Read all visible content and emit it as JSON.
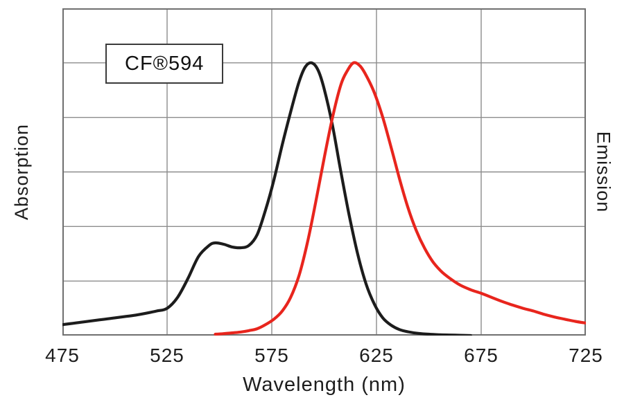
{
  "chart_data": {
    "type": "line",
    "title": "CF®594",
    "xlabel": "Wavelength (nm)",
    "ylabel_left": "Absorption",
    "ylabel_right": "Emission",
    "xlim": [
      475,
      725
    ],
    "ylim": [
      0,
      1.2
    ],
    "x_ticks": [
      475,
      525,
      575,
      625,
      675,
      725
    ],
    "grid": true,
    "h_grid_step": 0.2,
    "legend_position": "none",
    "colors": {
      "grid": "#8c8c8c",
      "border": "#6f6f6f",
      "text": "#1d1d1d",
      "absorption": "#1c1c1c",
      "emission": "#e8251d"
    },
    "series": [
      {
        "name": "Absorption",
        "color": "#1c1c1c",
        "x": [
          475,
          480,
          485,
          490,
          495,
          500,
          505,
          510,
          515,
          520,
          525,
          530,
          535,
          540,
          545,
          548,
          552,
          556,
          560,
          564,
          568,
          572,
          576,
          580,
          584,
          588,
          591,
          594,
          597,
          600,
          604,
          608,
          612,
          616,
          620,
          624,
          628,
          632,
          636,
          640,
          645,
          650,
          655,
          660,
          665,
          670
        ],
        "y": [
          0.04,
          0.045,
          0.05,
          0.055,
          0.06,
          0.065,
          0.07,
          0.075,
          0.082,
          0.09,
          0.1,
          0.14,
          0.21,
          0.29,
          0.33,
          0.34,
          0.335,
          0.325,
          0.322,
          0.33,
          0.37,
          0.46,
          0.57,
          0.7,
          0.82,
          0.93,
          0.985,
          1.0,
          0.975,
          0.905,
          0.77,
          0.6,
          0.44,
          0.3,
          0.19,
          0.115,
          0.065,
          0.038,
          0.022,
          0.014,
          0.008,
          0.005,
          0.003,
          0.002,
          0.001,
          0.0
        ]
      },
      {
        "name": "Emission",
        "color": "#e8251d",
        "x": [
          548,
          552,
          556,
          560,
          564,
          568,
          572,
          576,
          580,
          584,
          588,
          592,
          596,
          600,
          604,
          608,
          611,
          614,
          617,
          620,
          624,
          628,
          632,
          636,
          640,
          644,
          648,
          652,
          656,
          660,
          665,
          670,
          675,
          680,
          685,
          690,
          695,
          700,
          705,
          710,
          715,
          720,
          725
        ],
        "y": [
          0.005,
          0.007,
          0.01,
          0.013,
          0.018,
          0.025,
          0.04,
          0.06,
          0.09,
          0.14,
          0.22,
          0.34,
          0.49,
          0.65,
          0.8,
          0.92,
          0.97,
          1.0,
          0.99,
          0.955,
          0.89,
          0.8,
          0.69,
          0.575,
          0.47,
          0.385,
          0.32,
          0.27,
          0.235,
          0.21,
          0.185,
          0.168,
          0.155,
          0.14,
          0.125,
          0.112,
          0.1,
          0.09,
          0.078,
          0.068,
          0.06,
          0.052,
          0.046
        ]
      }
    ]
  }
}
